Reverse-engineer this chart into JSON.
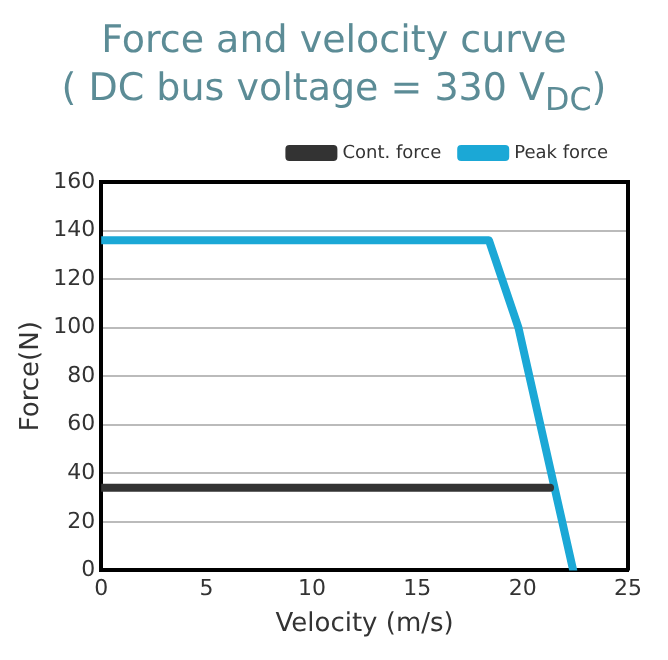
{
  "chart_data": {
    "type": "line",
    "title": "Force and velocity curve",
    "subtitle": "( DC bus voltage = 330 V$_{DC}$)",
    "xlabel": "Velocity (m/s)",
    "ylabel": "Force(N)",
    "series": [
      {
        "name": "Cont. force",
        "color": "#333333",
        "x": [
          0,
          21.3
        ],
        "values": [
          34,
          34
        ]
      },
      {
        "name": "Peak force",
        "color": "#1ba8d6",
        "x": [
          0,
          18.4,
          19.8,
          22.4
        ],
        "values": [
          136,
          136,
          100,
          0
        ]
      }
    ],
    "xlim": [
      0,
      25
    ],
    "xticks": [
      0,
      5,
      10,
      15,
      20,
      25
    ],
    "ylim": [
      0,
      160
    ],
    "yticks": [
      0,
      20,
      40,
      60,
      80,
      100,
      120,
      140,
      160
    ],
    "grid": "y",
    "legend": "top right",
    "marker": "none",
    "line_style": "solid"
  }
}
